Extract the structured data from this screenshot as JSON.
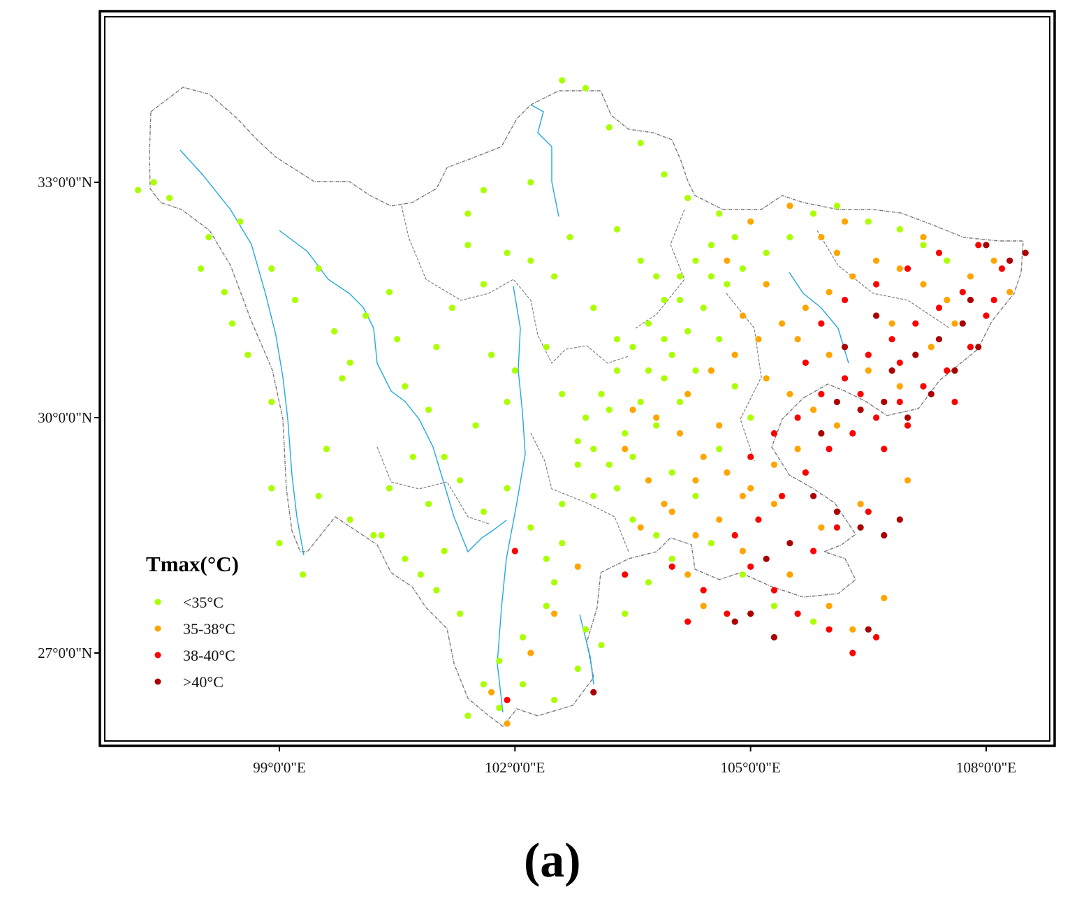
{
  "map": {
    "lat_ticks": [
      {
        "lat": 33,
        "label": "33°0'0\"N"
      },
      {
        "lat": 30,
        "label": "30°0'0\"N"
      },
      {
        "lat": 27,
        "label": "27°0'0\"N"
      }
    ],
    "lon_ticks": [
      {
        "lon": 99,
        "label": "99°0'0\"E"
      },
      {
        "lon": 102,
        "label": "102°0'0\"E"
      },
      {
        "lon": 105,
        "label": "105°0'0\"E"
      },
      {
        "lon": 108,
        "label": "108°0'0\"E"
      }
    ],
    "extent": {
      "lon_min": 96.7,
      "lon_max": 108.9,
      "lat_min": 25.8,
      "lat_max": 34.7
    }
  },
  "legend": {
    "title": "Tmax(°C)",
    "classes": [
      {
        "key": "lt35",
        "label": "<35°C",
        "color": "#aaff00"
      },
      {
        "key": "c35_38",
        "label": "35-38°C",
        "color": "#ffa500"
      },
      {
        "key": "c38_40",
        "label": "38-40°C",
        "color": "#ff0000"
      },
      {
        "key": "gt40",
        "label": ">40°C",
        "color": "#aa0000"
      }
    ]
  },
  "colors": {
    "boundary": "#777777",
    "river": "#22aadd",
    "frame": "#000000"
  },
  "panel_label": "(a)",
  "chart_data": {
    "type": "scatter",
    "title": "",
    "xlabel": "",
    "ylabel": "",
    "xlim": [
      96.7,
      108.9
    ],
    "ylim": [
      25.8,
      34.7
    ],
    "x_units": "degrees E",
    "y_units": "degrees N",
    "series": [
      {
        "name": "<35°C",
        "color": "#aaff00",
        "points": [
          [
            97.2,
            32.9
          ],
          [
            97.4,
            33.0
          ],
          [
            97.6,
            32.8
          ],
          [
            98.1,
            32.3
          ],
          [
            98.0,
            31.9
          ],
          [
            98.3,
            31.6
          ],
          [
            98.4,
            31.2
          ],
          [
            98.6,
            30.8
          ],
          [
            98.9,
            30.2
          ],
          [
            98.9,
            29.1
          ],
          [
            99.0,
            28.4
          ],
          [
            99.3,
            28.0
          ],
          [
            98.5,
            32.5
          ],
          [
            98.9,
            31.9
          ],
          [
            99.2,
            31.5
          ],
          [
            99.5,
            31.9
          ],
          [
            99.7,
            31.1
          ],
          [
            99.9,
            30.7
          ],
          [
            100.1,
            31.3
          ],
          [
            99.8,
            30.5
          ],
          [
            99.6,
            29.6
          ],
          [
            99.5,
            29.0
          ],
          [
            99.9,
            28.7
          ],
          [
            100.2,
            28.5
          ],
          [
            100.4,
            31.6
          ],
          [
            100.5,
            31.0
          ],
          [
            100.6,
            30.4
          ],
          [
            100.9,
            30.1
          ],
          [
            100.7,
            29.5
          ],
          [
            100.4,
            29.1
          ],
          [
            100.3,
            28.5
          ],
          [
            100.6,
            28.2
          ],
          [
            100.9,
            28.9
          ],
          [
            101.1,
            29.5
          ],
          [
            101.0,
            30.9
          ],
          [
            101.2,
            31.4
          ],
          [
            101.4,
            32.2
          ],
          [
            101.6,
            31.7
          ],
          [
            101.9,
            32.1
          ],
          [
            102.2,
            32.0
          ],
          [
            102.5,
            31.8
          ],
          [
            102.7,
            32.3
          ],
          [
            101.7,
            30.8
          ],
          [
            102.0,
            30.6
          ],
          [
            102.4,
            30.9
          ],
          [
            102.6,
            30.3
          ],
          [
            101.9,
            30.2
          ],
          [
            101.5,
            29.9
          ],
          [
            101.3,
            29.2
          ],
          [
            101.6,
            28.8
          ],
          [
            101.9,
            29.1
          ],
          [
            102.2,
            28.6
          ],
          [
            102.4,
            28.2
          ],
          [
            102.6,
            28.9
          ],
          [
            102.8,
            29.4
          ],
          [
            103.0,
            29.6
          ],
          [
            102.9,
            30.0
          ],
          [
            103.1,
            30.3
          ],
          [
            103.3,
            30.6
          ],
          [
            103.5,
            30.9
          ],
          [
            103.7,
            31.2
          ],
          [
            103.9,
            31.5
          ],
          [
            104.1,
            31.8
          ],
          [
            104.3,
            32.0
          ],
          [
            104.5,
            32.2
          ],
          [
            104.6,
            32.6
          ],
          [
            104.2,
            32.8
          ],
          [
            103.9,
            33.1
          ],
          [
            103.6,
            33.5
          ],
          [
            103.2,
            33.7
          ],
          [
            102.9,
            34.2
          ],
          [
            102.6,
            34.3
          ],
          [
            102.2,
            33.0
          ],
          [
            101.6,
            32.9
          ],
          [
            101.4,
            32.6
          ],
          [
            103.3,
            32.4
          ],
          [
            103.6,
            32.0
          ],
          [
            103.8,
            31.8
          ],
          [
            103.0,
            31.4
          ],
          [
            103.3,
            31.0
          ],
          [
            103.6,
            30.2
          ],
          [
            103.4,
            29.8
          ],
          [
            103.2,
            29.4
          ],
          [
            103.0,
            29.0
          ],
          [
            102.6,
            28.4
          ],
          [
            102.4,
            27.6
          ],
          [
            102.1,
            27.2
          ],
          [
            101.8,
            26.9
          ],
          [
            101.6,
            26.6
          ],
          [
            101.4,
            26.2
          ],
          [
            101.8,
            26.3
          ],
          [
            102.1,
            26.6
          ],
          [
            102.5,
            26.4
          ],
          [
            102.8,
            26.8
          ],
          [
            102.9,
            27.3
          ],
          [
            102.5,
            27.9
          ],
          [
            101.3,
            27.5
          ],
          [
            101.0,
            27.8
          ],
          [
            100.8,
            28.0
          ],
          [
            101.1,
            28.3
          ],
          [
            103.9,
            30.5
          ],
          [
            104.0,
            30.8
          ],
          [
            104.2,
            31.1
          ],
          [
            104.4,
            31.4
          ],
          [
            104.7,
            31.7
          ],
          [
            104.9,
            31.9
          ],
          [
            105.2,
            32.1
          ],
          [
            105.5,
            32.3
          ],
          [
            105.8,
            32.6
          ],
          [
            106.1,
            32.7
          ],
          [
            106.5,
            32.5
          ],
          [
            106.9,
            32.4
          ],
          [
            107.2,
            32.2
          ],
          [
            107.5,
            32.0
          ],
          [
            104.6,
            31.0
          ],
          [
            104.3,
            30.6
          ],
          [
            104.1,
            30.2
          ],
          [
            103.8,
            29.9
          ],
          [
            103.5,
            29.5
          ],
          [
            103.3,
            29.1
          ],
          [
            103.5,
            28.7
          ],
          [
            103.8,
            28.5
          ],
          [
            104.0,
            28.2
          ],
          [
            103.7,
            27.9
          ],
          [
            103.4,
            27.5
          ],
          [
            103.1,
            27.1
          ],
          [
            104.5,
            28.4
          ],
          [
            104.9,
            28.0
          ],
          [
            105.3,
            27.6
          ],
          [
            105.8,
            27.4
          ],
          [
            104.0,
            29.3
          ],
          [
            104.3,
            29.0
          ],
          [
            103.7,
            30.6
          ],
          [
            103.2,
            30.1
          ],
          [
            102.8,
            29.7
          ],
          [
            104.8,
            30.4
          ],
          [
            105.0,
            30.0
          ],
          [
            104.6,
            29.6
          ],
          [
            103.9,
            31.0
          ],
          [
            104.1,
            31.5
          ],
          [
            104.5,
            31.8
          ],
          [
            104.8,
            32.3
          ]
        ]
      },
      {
        "name": "35-38°C",
        "color": "#ffa500",
        "points": [
          [
            103.5,
            30.1
          ],
          [
            103.8,
            30.0
          ],
          [
            104.1,
            29.8
          ],
          [
            104.4,
            29.5
          ],
          [
            104.7,
            29.3
          ],
          [
            105.0,
            29.1
          ],
          [
            105.3,
            28.9
          ],
          [
            104.2,
            30.3
          ],
          [
            104.5,
            30.6
          ],
          [
            104.8,
            30.8
          ],
          [
            105.1,
            31.0
          ],
          [
            105.4,
            31.2
          ],
          [
            105.7,
            31.4
          ],
          [
            106.0,
            31.6
          ],
          [
            106.3,
            31.8
          ],
          [
            106.6,
            32.0
          ],
          [
            106.9,
            31.9
          ],
          [
            107.2,
            31.7
          ],
          [
            107.5,
            31.5
          ],
          [
            107.8,
            31.8
          ],
          [
            108.1,
            32.0
          ],
          [
            108.3,
            31.6
          ],
          [
            105.2,
            30.5
          ],
          [
            105.5,
            30.3
          ],
          [
            105.8,
            30.1
          ],
          [
            106.1,
            29.9
          ],
          [
            105.6,
            29.6
          ],
          [
            105.3,
            29.4
          ],
          [
            104.9,
            29.0
          ],
          [
            104.6,
            28.7
          ],
          [
            104.3,
            28.5
          ],
          [
            104.0,
            28.8
          ],
          [
            103.7,
            29.2
          ],
          [
            103.4,
            29.6
          ],
          [
            105.9,
            32.3
          ],
          [
            106.2,
            32.5
          ],
          [
            105.5,
            32.7
          ],
          [
            105.0,
            32.5
          ],
          [
            104.7,
            32.0
          ],
          [
            105.6,
            31.0
          ],
          [
            106.0,
            30.8
          ],
          [
            106.5,
            30.6
          ],
          [
            106.9,
            30.4
          ],
          [
            107.3,
            30.9
          ],
          [
            107.6,
            31.2
          ],
          [
            104.9,
            28.3
          ],
          [
            105.5,
            28.0
          ],
          [
            106.0,
            27.6
          ],
          [
            106.3,
            27.3
          ],
          [
            104.4,
            27.6
          ],
          [
            105.0,
            27.5
          ],
          [
            102.8,
            28.1
          ],
          [
            102.2,
            27.0
          ],
          [
            101.7,
            26.5
          ],
          [
            101.9,
            26.1
          ],
          [
            102.5,
            27.5
          ],
          [
            104.2,
            28.0
          ],
          [
            105.9,
            28.6
          ],
          [
            106.4,
            28.9
          ],
          [
            107.0,
            29.2
          ],
          [
            106.8,
            31.2
          ],
          [
            107.2,
            32.3
          ],
          [
            106.1,
            32.1
          ],
          [
            105.2,
            31.7
          ],
          [
            104.9,
            31.3
          ],
          [
            104.6,
            29.9
          ],
          [
            104.3,
            29.2
          ],
          [
            103.9,
            28.9
          ],
          [
            103.6,
            28.6
          ],
          [
            106.7,
            27.7
          ]
        ]
      },
      {
        "name": "38-40°C",
        "color": "#ff0000",
        "points": [
          [
            105.0,
            29.5
          ],
          [
            105.3,
            29.8
          ],
          [
            105.6,
            30.0
          ],
          [
            105.9,
            30.3
          ],
          [
            106.2,
            30.5
          ],
          [
            106.5,
            30.8
          ],
          [
            106.8,
            31.0
          ],
          [
            107.1,
            31.2
          ],
          [
            107.4,
            31.4
          ],
          [
            107.7,
            31.6
          ],
          [
            108.0,
            31.3
          ],
          [
            107.8,
            30.9
          ],
          [
            107.5,
            30.6
          ],
          [
            107.2,
            30.4
          ],
          [
            106.9,
            30.2
          ],
          [
            106.6,
            30.0
          ],
          [
            106.3,
            29.8
          ],
          [
            106.0,
            29.6
          ],
          [
            105.7,
            29.3
          ],
          [
            105.4,
            29.0
          ],
          [
            105.1,
            28.7
          ],
          [
            104.8,
            28.5
          ],
          [
            105.0,
            28.1
          ],
          [
            105.3,
            27.8
          ],
          [
            105.6,
            27.5
          ],
          [
            106.0,
            27.3
          ],
          [
            106.3,
            27.0
          ],
          [
            106.6,
            27.2
          ],
          [
            105.8,
            28.3
          ],
          [
            106.1,
            28.6
          ],
          [
            106.5,
            28.8
          ],
          [
            104.4,
            27.8
          ],
          [
            104.7,
            27.5
          ],
          [
            105.9,
            31.2
          ],
          [
            106.2,
            31.5
          ],
          [
            106.6,
            31.7
          ],
          [
            107.0,
            31.9
          ],
          [
            107.4,
            32.1
          ],
          [
            107.9,
            32.2
          ],
          [
            108.2,
            31.9
          ],
          [
            108.1,
            31.5
          ],
          [
            107.6,
            30.2
          ],
          [
            107.0,
            29.9
          ],
          [
            106.7,
            29.6
          ],
          [
            104.2,
            27.4
          ],
          [
            104.0,
            28.1
          ],
          [
            103.4,
            28.0
          ],
          [
            102.0,
            28.3
          ],
          [
            101.9,
            26.4
          ],
          [
            106.4,
            30.3
          ],
          [
            105.7,
            30.7
          ],
          [
            106.9,
            30.7
          ]
        ]
      },
      {
        "name": ">40°C",
        "color": "#aa0000",
        "points": [
          [
            106.8,
            30.6
          ],
          [
            107.1,
            30.8
          ],
          [
            107.4,
            31.0
          ],
          [
            107.7,
            31.2
          ],
          [
            107.3,
            30.3
          ],
          [
            107.0,
            30.0
          ],
          [
            106.7,
            30.2
          ],
          [
            106.4,
            30.1
          ],
          [
            106.1,
            30.2
          ],
          [
            105.8,
            29.0
          ],
          [
            106.1,
            28.8
          ],
          [
            106.4,
            28.6
          ],
          [
            106.7,
            28.5
          ],
          [
            106.9,
            28.7
          ],
          [
            105.5,
            28.4
          ],
          [
            105.2,
            28.2
          ],
          [
            105.0,
            27.5
          ],
          [
            105.3,
            27.2
          ],
          [
            104.8,
            27.4
          ],
          [
            106.5,
            27.3
          ],
          [
            107.6,
            30.6
          ],
          [
            107.9,
            30.9
          ],
          [
            108.3,
            32.0
          ],
          [
            108.0,
            32.2
          ],
          [
            107.8,
            31.5
          ],
          [
            106.2,
            30.9
          ],
          [
            105.9,
            29.8
          ],
          [
            106.6,
            31.3
          ],
          [
            108.5,
            32.1
          ],
          [
            103.0,
            26.5
          ]
        ]
      }
    ]
  }
}
